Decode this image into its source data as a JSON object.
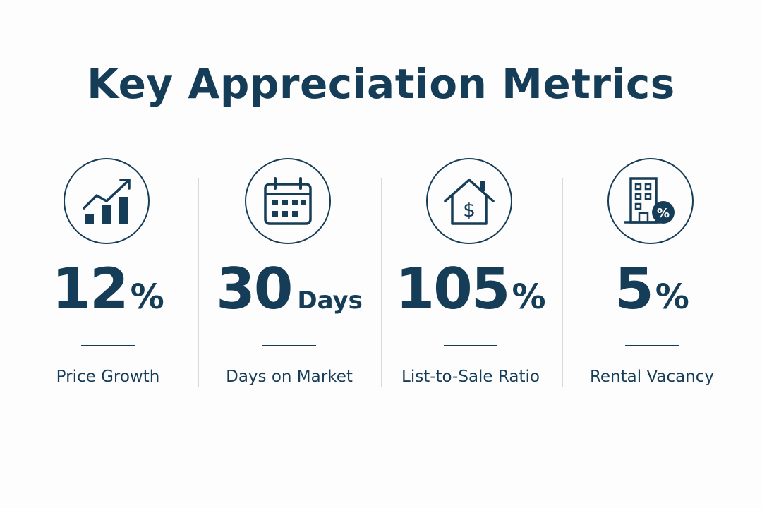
{
  "title": "Key Appreciation Metrics",
  "colors": {
    "primary": "#163d57",
    "divider": "#d6dadd",
    "background": "#fdfdfd"
  },
  "metrics": [
    {
      "icon": "rising-bar-chart-icon",
      "value": "12",
      "unit": "%",
      "label": "Price Growth"
    },
    {
      "icon": "calendar-icon",
      "value": "30",
      "unit": "Days",
      "label": "Days on Market"
    },
    {
      "icon": "house-dollar-icon",
      "value": "105",
      "unit": "%",
      "label": "List-to-Sale Ratio"
    },
    {
      "icon": "building-percent-icon",
      "value": "5",
      "unit": "%",
      "label": "Rental Vacancy"
    }
  ]
}
